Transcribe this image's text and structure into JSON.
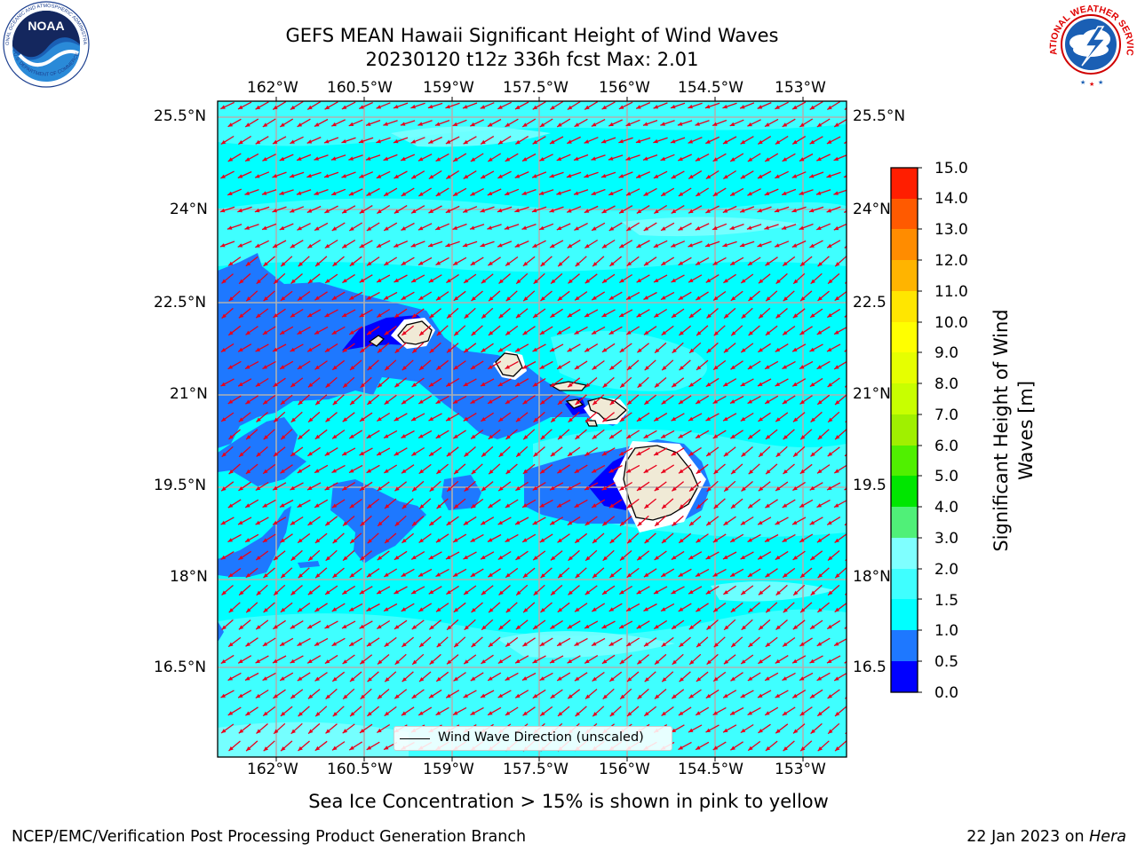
{
  "header": {
    "title_line1": "GEFS MEAN Hawaii Significant Height of Wind Waves",
    "title_line2": "20230120 t12z 336h fcst   Max: 2.01"
  },
  "logos": {
    "noaa": {
      "text": "NOAA",
      "ring_text": "NATIONAL OCEANIC AND ATMOSPHERIC ADMINISTRATION",
      "bottom_text": "U.S. DEPARTMENT OF COMMERCE"
    },
    "nws": {
      "ring_text": "NATIONAL WEATHER SERVICE"
    }
  },
  "map": {
    "lon_ticks": [
      "162°W",
      "160.5°W",
      "159°W",
      "157.5°W",
      "156°W",
      "154.5°W",
      "153°W"
    ],
    "lat_ticks": [
      "25.5°N",
      "24°N",
      "22.5°N",
      "21°N",
      "19.5°N",
      "18°N",
      "16.5°N"
    ],
    "lat_ticks_right": [
      "25.5°N",
      "24°N",
      "22.5",
      "21°N",
      "19.5",
      "18°N",
      "16.5"
    ],
    "lon_values": [
      -162,
      -160.5,
      -159,
      -157.5,
      -156,
      -154.5,
      -153
    ],
    "lat_values": [
      25.5,
      24,
      22.5,
      21,
      19.5,
      18,
      16.5
    ],
    "lon_range": [
      -163.0,
      -152.7
    ],
    "lat_range": [
      15.2,
      25.8
    ],
    "grid": true,
    "legend": {
      "label": "Wind Wave Direction (unscaled)",
      "placement": "bottom-center"
    },
    "wind_direction": "toward southwest",
    "colors": {
      "ocean_base": "#00ffff",
      "ocean_mid": "#3fffff",
      "ocean_high": "#7fffff",
      "ocean_low": "#1e78ff",
      "ocean_lowest": "#0000ff",
      "land": "#f0ead6",
      "arrows": "#e8001c",
      "grid": "#b0b0b0"
    }
  },
  "colorbar": {
    "label_line1": "Significant Height of Wind",
    "label_line2": "Waves [m]",
    "ticks": [
      "15.0",
      "14.0",
      "13.0",
      "12.0",
      "11.0",
      "10.0",
      "9.0",
      "8.0",
      "7.0",
      "6.0",
      "5.0",
      "4.0",
      "3.0",
      "2.0",
      "1.5",
      "1.0",
      "0.5",
      "0.0"
    ],
    "levels": [
      0.0,
      0.5,
      1.0,
      1.5,
      2.0,
      3.0,
      4.0,
      5.0,
      6.0,
      7.0,
      8.0,
      9.0,
      10.0,
      11.0,
      12.0,
      13.0,
      14.0,
      15.0
    ],
    "colors": [
      "#0000ff",
      "#1e78ff",
      "#00ffff",
      "#3fffff",
      "#7fffff",
      "#50f078",
      "#00e600",
      "#50f000",
      "#a0f000",
      "#c8ff00",
      "#e6ff00",
      "#ffff00",
      "#ffe600",
      "#ffb400",
      "#ff8c00",
      "#ff5a00",
      "#ff1e00"
    ]
  },
  "notes": {
    "sea_ice": "Sea Ice Concentration > 15% is shown in pink to yellow",
    "footer_left": "NCEP/EMC/Verification Post Processing Product Generation Branch",
    "footer_date": "22 Jan 2023 on ",
    "footer_machine": "Hera"
  }
}
